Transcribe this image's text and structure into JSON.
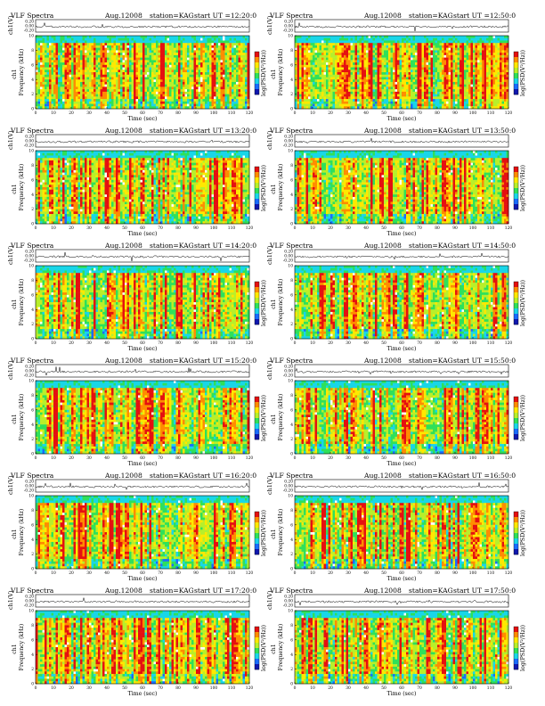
{
  "header": {
    "title": "VLF Spectra",
    "date": "Aug.12008",
    "station": "station=KAG",
    "start_prefix": "start UT ="
  },
  "axes": {
    "x_label": "Time (sec)",
    "y_label": "Frequency (kHz)",
    "trace_label": "ch1(V)",
    "spec_channel": "ch1",
    "colorbar_label": "log(PSD(V²/Hz))"
  },
  "colors": {
    "colormap": [
      "#1018b0",
      "#1a6cff",
      "#19d6e8",
      "#2fe05a",
      "#b8ef2a",
      "#ffe800",
      "#ff8c00",
      "#e51010",
      "#ffffff"
    ]
  },
  "chart_data": [
    {
      "type": "heatmap",
      "start_ut": "12:20:0",
      "x": [
        0,
        120
      ],
      "y": [
        0,
        10
      ],
      "xticks": [
        0,
        10,
        20,
        30,
        40,
        50,
        60,
        70,
        80,
        90,
        100,
        110,
        120
      ],
      "yticks": [
        0,
        2,
        4,
        6,
        8,
        10
      ],
      "trace_ticks": [
        "0.20",
        "0.00",
        "-0.20"
      ]
    },
    {
      "type": "heatmap",
      "start_ut": "12:50:0",
      "x": [
        0,
        120
      ],
      "y": [
        0,
        10
      ],
      "xticks": [
        0,
        10,
        20,
        30,
        40,
        50,
        60,
        70,
        80,
        90,
        100,
        110,
        120
      ],
      "yticks": [
        0,
        2,
        4,
        6,
        8,
        10
      ],
      "trace_ticks": [
        "0.20",
        "0.00",
        "-0.20"
      ]
    },
    {
      "type": "heatmap",
      "start_ut": "13:20:0",
      "x": [
        0,
        120
      ],
      "y": [
        0,
        10
      ],
      "xticks": [
        0,
        10,
        20,
        30,
        40,
        50,
        60,
        70,
        80,
        90,
        100,
        110,
        120
      ],
      "yticks": [
        0,
        2,
        4,
        6,
        8,
        10
      ],
      "trace_ticks": [
        "0.20",
        "0.00",
        "-0.20"
      ]
    },
    {
      "type": "heatmap",
      "start_ut": "13:50:0",
      "x": [
        0,
        120
      ],
      "y": [
        0,
        10
      ],
      "xticks": [
        0,
        10,
        20,
        30,
        40,
        50,
        60,
        70,
        80,
        90,
        100,
        110,
        120
      ],
      "yticks": [
        0,
        2,
        4,
        6,
        8,
        10
      ],
      "trace_ticks": [
        "0.20",
        "0.00",
        "-0.20"
      ]
    },
    {
      "type": "heatmap",
      "start_ut": "14:20:0",
      "x": [
        0,
        120
      ],
      "y": [
        0,
        10
      ],
      "xticks": [
        0,
        10,
        20,
        30,
        40,
        50,
        60,
        70,
        80,
        90,
        100,
        110,
        120
      ],
      "yticks": [
        0,
        2,
        4,
        6,
        8,
        10
      ],
      "trace_ticks": [
        "0.20",
        "0.00",
        "-0.20"
      ]
    },
    {
      "type": "heatmap",
      "start_ut": "14:50:0",
      "x": [
        0,
        120
      ],
      "y": [
        0,
        10
      ],
      "xticks": [
        0,
        10,
        20,
        30,
        40,
        50,
        60,
        70,
        80,
        90,
        100,
        110,
        120
      ],
      "yticks": [
        0,
        2,
        4,
        6,
        8,
        10
      ],
      "trace_ticks": [
        "0.20",
        "0.00",
        "-0.20"
      ]
    },
    {
      "type": "heatmap",
      "start_ut": "15:20:0",
      "x": [
        0,
        120
      ],
      "y": [
        0,
        10
      ],
      "xticks": [
        0,
        10,
        20,
        30,
        40,
        50,
        60,
        70,
        80,
        90,
        100,
        110,
        120
      ],
      "yticks": [
        0,
        2,
        4,
        6,
        8,
        10
      ],
      "trace_ticks": [
        "0.20",
        "0.00",
        "-0.20"
      ]
    },
    {
      "type": "heatmap",
      "start_ut": "15:50:0",
      "x": [
        0,
        120
      ],
      "y": [
        0,
        10
      ],
      "xticks": [
        0,
        10,
        20,
        30,
        40,
        50,
        60,
        70,
        80,
        90,
        100,
        110,
        120
      ],
      "yticks": [
        0,
        2,
        4,
        6,
        8,
        10
      ],
      "trace_ticks": [
        "0.20",
        "0.00",
        "-0.20"
      ]
    },
    {
      "type": "heatmap",
      "start_ut": "16:20:0",
      "x": [
        0,
        120
      ],
      "y": [
        0,
        10
      ],
      "xticks": [
        0,
        10,
        20,
        30,
        40,
        50,
        60,
        70,
        80,
        90,
        100,
        110,
        120
      ],
      "yticks": [
        0,
        2,
        4,
        6,
        8,
        10
      ],
      "trace_ticks": [
        "0.20",
        "0.00",
        "-0.20"
      ]
    },
    {
      "type": "heatmap",
      "start_ut": "16:50:0",
      "x": [
        0,
        120
      ],
      "y": [
        0,
        10
      ],
      "xticks": [
        0,
        10,
        20,
        30,
        40,
        50,
        60,
        70,
        80,
        90,
        100,
        110,
        120
      ],
      "yticks": [
        0,
        2,
        4,
        6,
        8,
        10
      ],
      "trace_ticks": [
        "0.20",
        "0.00",
        "-0.20"
      ]
    },
    {
      "type": "heatmap",
      "start_ut": "17:20:0",
      "x": [
        0,
        120
      ],
      "y": [
        0,
        10
      ],
      "xticks": [
        0,
        10,
        20,
        30,
        40,
        50,
        60,
        70,
        80,
        90,
        100,
        110,
        120
      ],
      "yticks": [
        0,
        2,
        4,
        6,
        8,
        10
      ],
      "trace_ticks": [
        "0.20",
        "0.00",
        "-0.20"
      ]
    },
    {
      "type": "heatmap",
      "start_ut": "17:50:0",
      "x": [
        0,
        120
      ],
      "y": [
        0,
        10
      ],
      "xticks": [
        0,
        10,
        20,
        30,
        40,
        50,
        60,
        70,
        80,
        90,
        100,
        110,
        120
      ],
      "yticks": [
        0,
        2,
        4,
        6,
        8,
        10
      ],
      "trace_ticks": [
        "0.20",
        "0.00",
        "-0.20"
      ]
    }
  ]
}
